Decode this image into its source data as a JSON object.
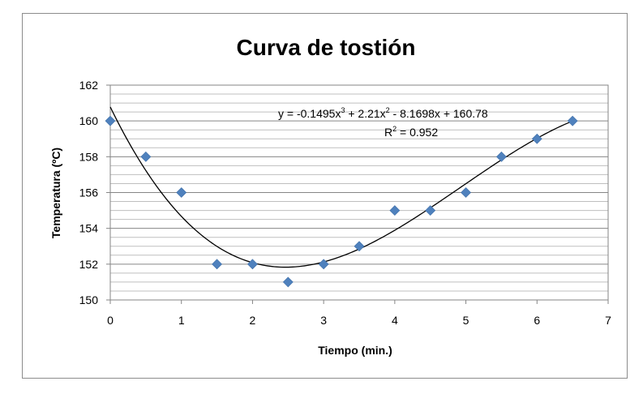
{
  "chart_data": {
    "type": "scatter",
    "title": "Curva de tostión",
    "xlabel": "Tiempo (min.)",
    "ylabel": "Temperatura (ºC)",
    "xlim": [
      0,
      7
    ],
    "ylim": [
      150,
      162
    ],
    "x_ticks": [
      "0",
      "1",
      "2",
      "3",
      "4",
      "5",
      "6",
      "7"
    ],
    "y_ticks": [
      "150",
      "152",
      "154",
      "156",
      "158",
      "160",
      "162"
    ],
    "grid": true,
    "legend": "none",
    "marker_color": "#4f81bd",
    "trendline_color": "#000000",
    "series": [
      {
        "x": [
          0,
          0.5,
          1,
          1.5,
          2,
          2.5,
          3,
          3.5,
          4,
          4.5,
          5,
          5.5,
          6,
          6.5
        ],
        "y": [
          160,
          158,
          156,
          152,
          152,
          151,
          152,
          153,
          155,
          155,
          156,
          158,
          159,
          160
        ]
      }
    ],
    "trendline": {
      "type": "polynomial",
      "coefficients": [
        -0.1495,
        2.21,
        -8.1698,
        160.78
      ],
      "equation_parts": [
        "y = -0.1495x",
        "3",
        " + 2.21x",
        "2",
        " - 8.1698x + 160.78"
      ],
      "r2_parts": [
        "R",
        "2",
        " = 0.952"
      ]
    }
  }
}
